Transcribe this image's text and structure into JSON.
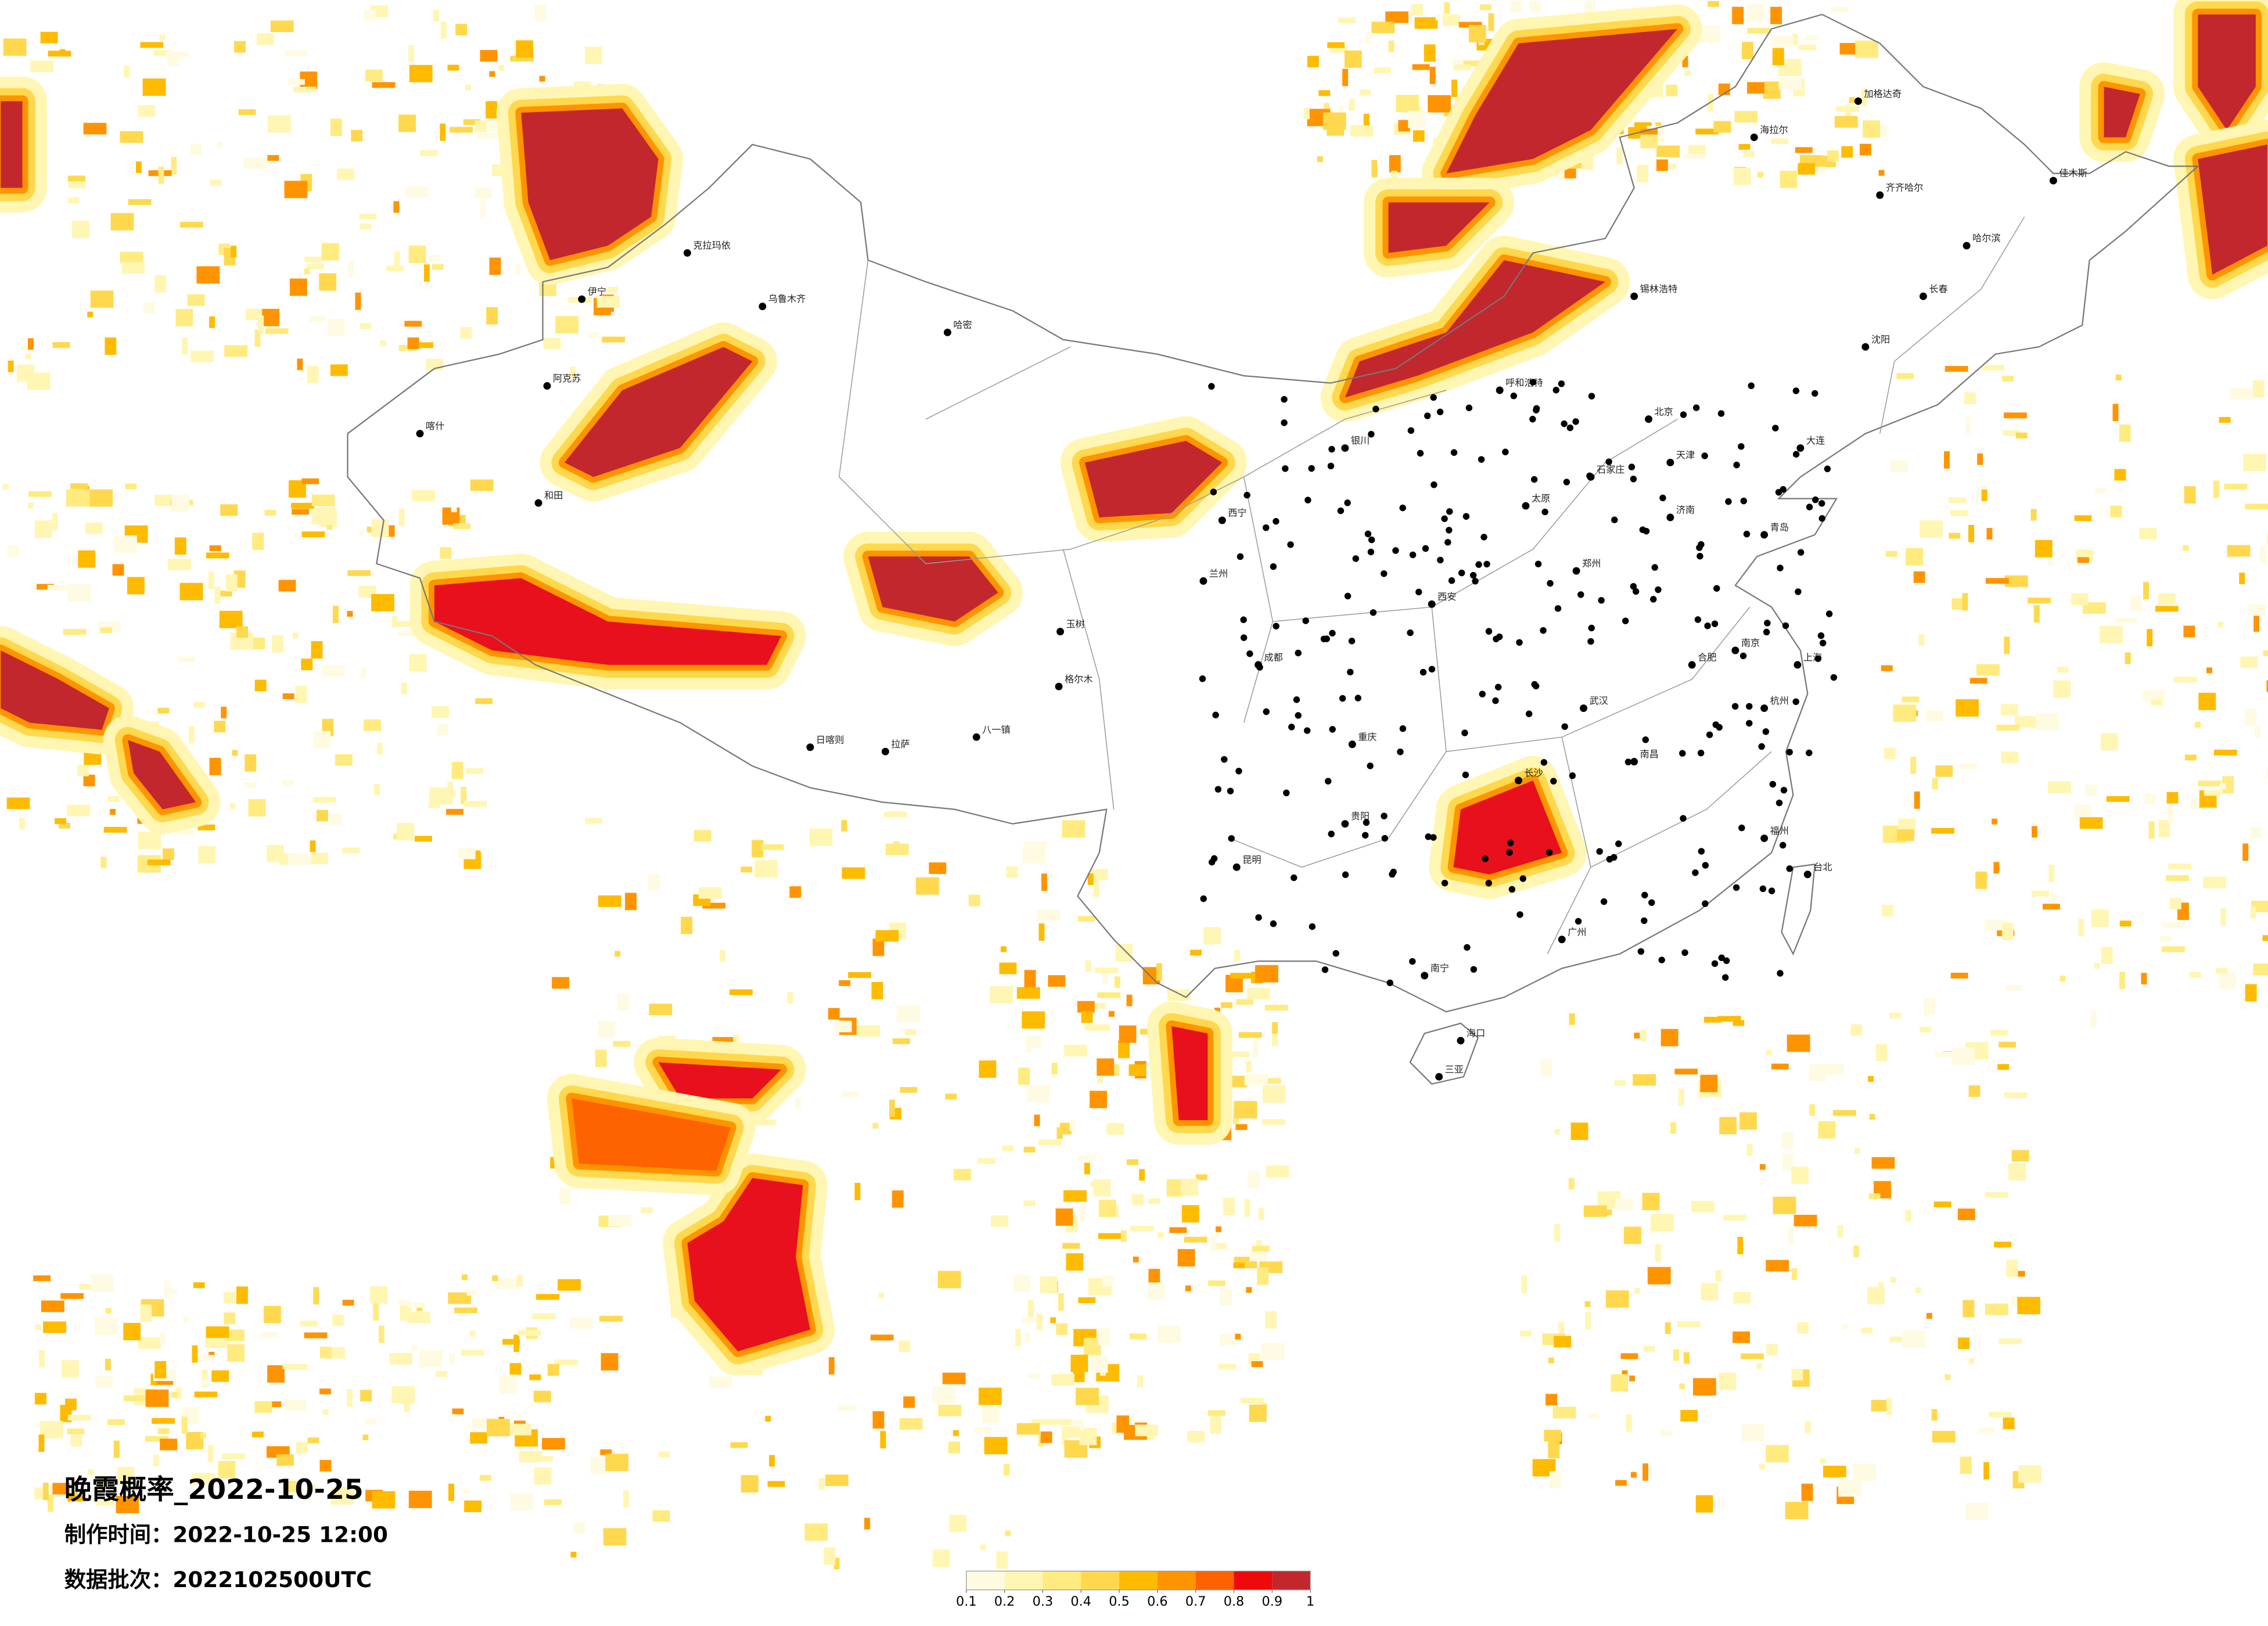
{
  "title": "晚霞概率_2022-10-25",
  "made_time": "制作时间：2022-10-25 12:00",
  "batch": "数据批次：2022102500UTC",
  "colorbar": {
    "ticks": [
      0.1,
      0.2,
      0.3,
      0.4,
      0.5,
      0.6,
      0.7,
      0.8,
      0.9,
      1
    ],
    "colors": [
      "#fffbe3",
      "#fff6b3",
      "#ffeb80",
      "#ffd84d",
      "#ffbb00",
      "#ff9400",
      "#ff6200",
      "#ee0a0a",
      "#c2272d"
    ]
  },
  "cities": [
    "克拉玛依",
    "乌鲁木齐",
    "伊宁",
    "阿克苏",
    "喀什",
    "和田",
    "哈密",
    "拉萨",
    "日喀则",
    "格尔木",
    "西宁",
    "兰州",
    "银川",
    "呼和浩特",
    "北京",
    "天津",
    "石家庄",
    "太原",
    "西安",
    "郑州",
    "济南",
    "南京",
    "上海",
    "杭州",
    "合肥",
    "武汉",
    "长沙",
    "南昌",
    "福州",
    "台北",
    "广州",
    "南宁",
    "海口",
    "三亚",
    "昆明",
    "贵阳",
    "成都",
    "重庆",
    "沈阳",
    "长春",
    "哈尔滨",
    "齐齐哈尔",
    "海拉尔",
    "加格达奇",
    "佳木斯",
    "大连",
    "青岛",
    "锡林浩特",
    "八一镇",
    "玉树"
  ]
}
